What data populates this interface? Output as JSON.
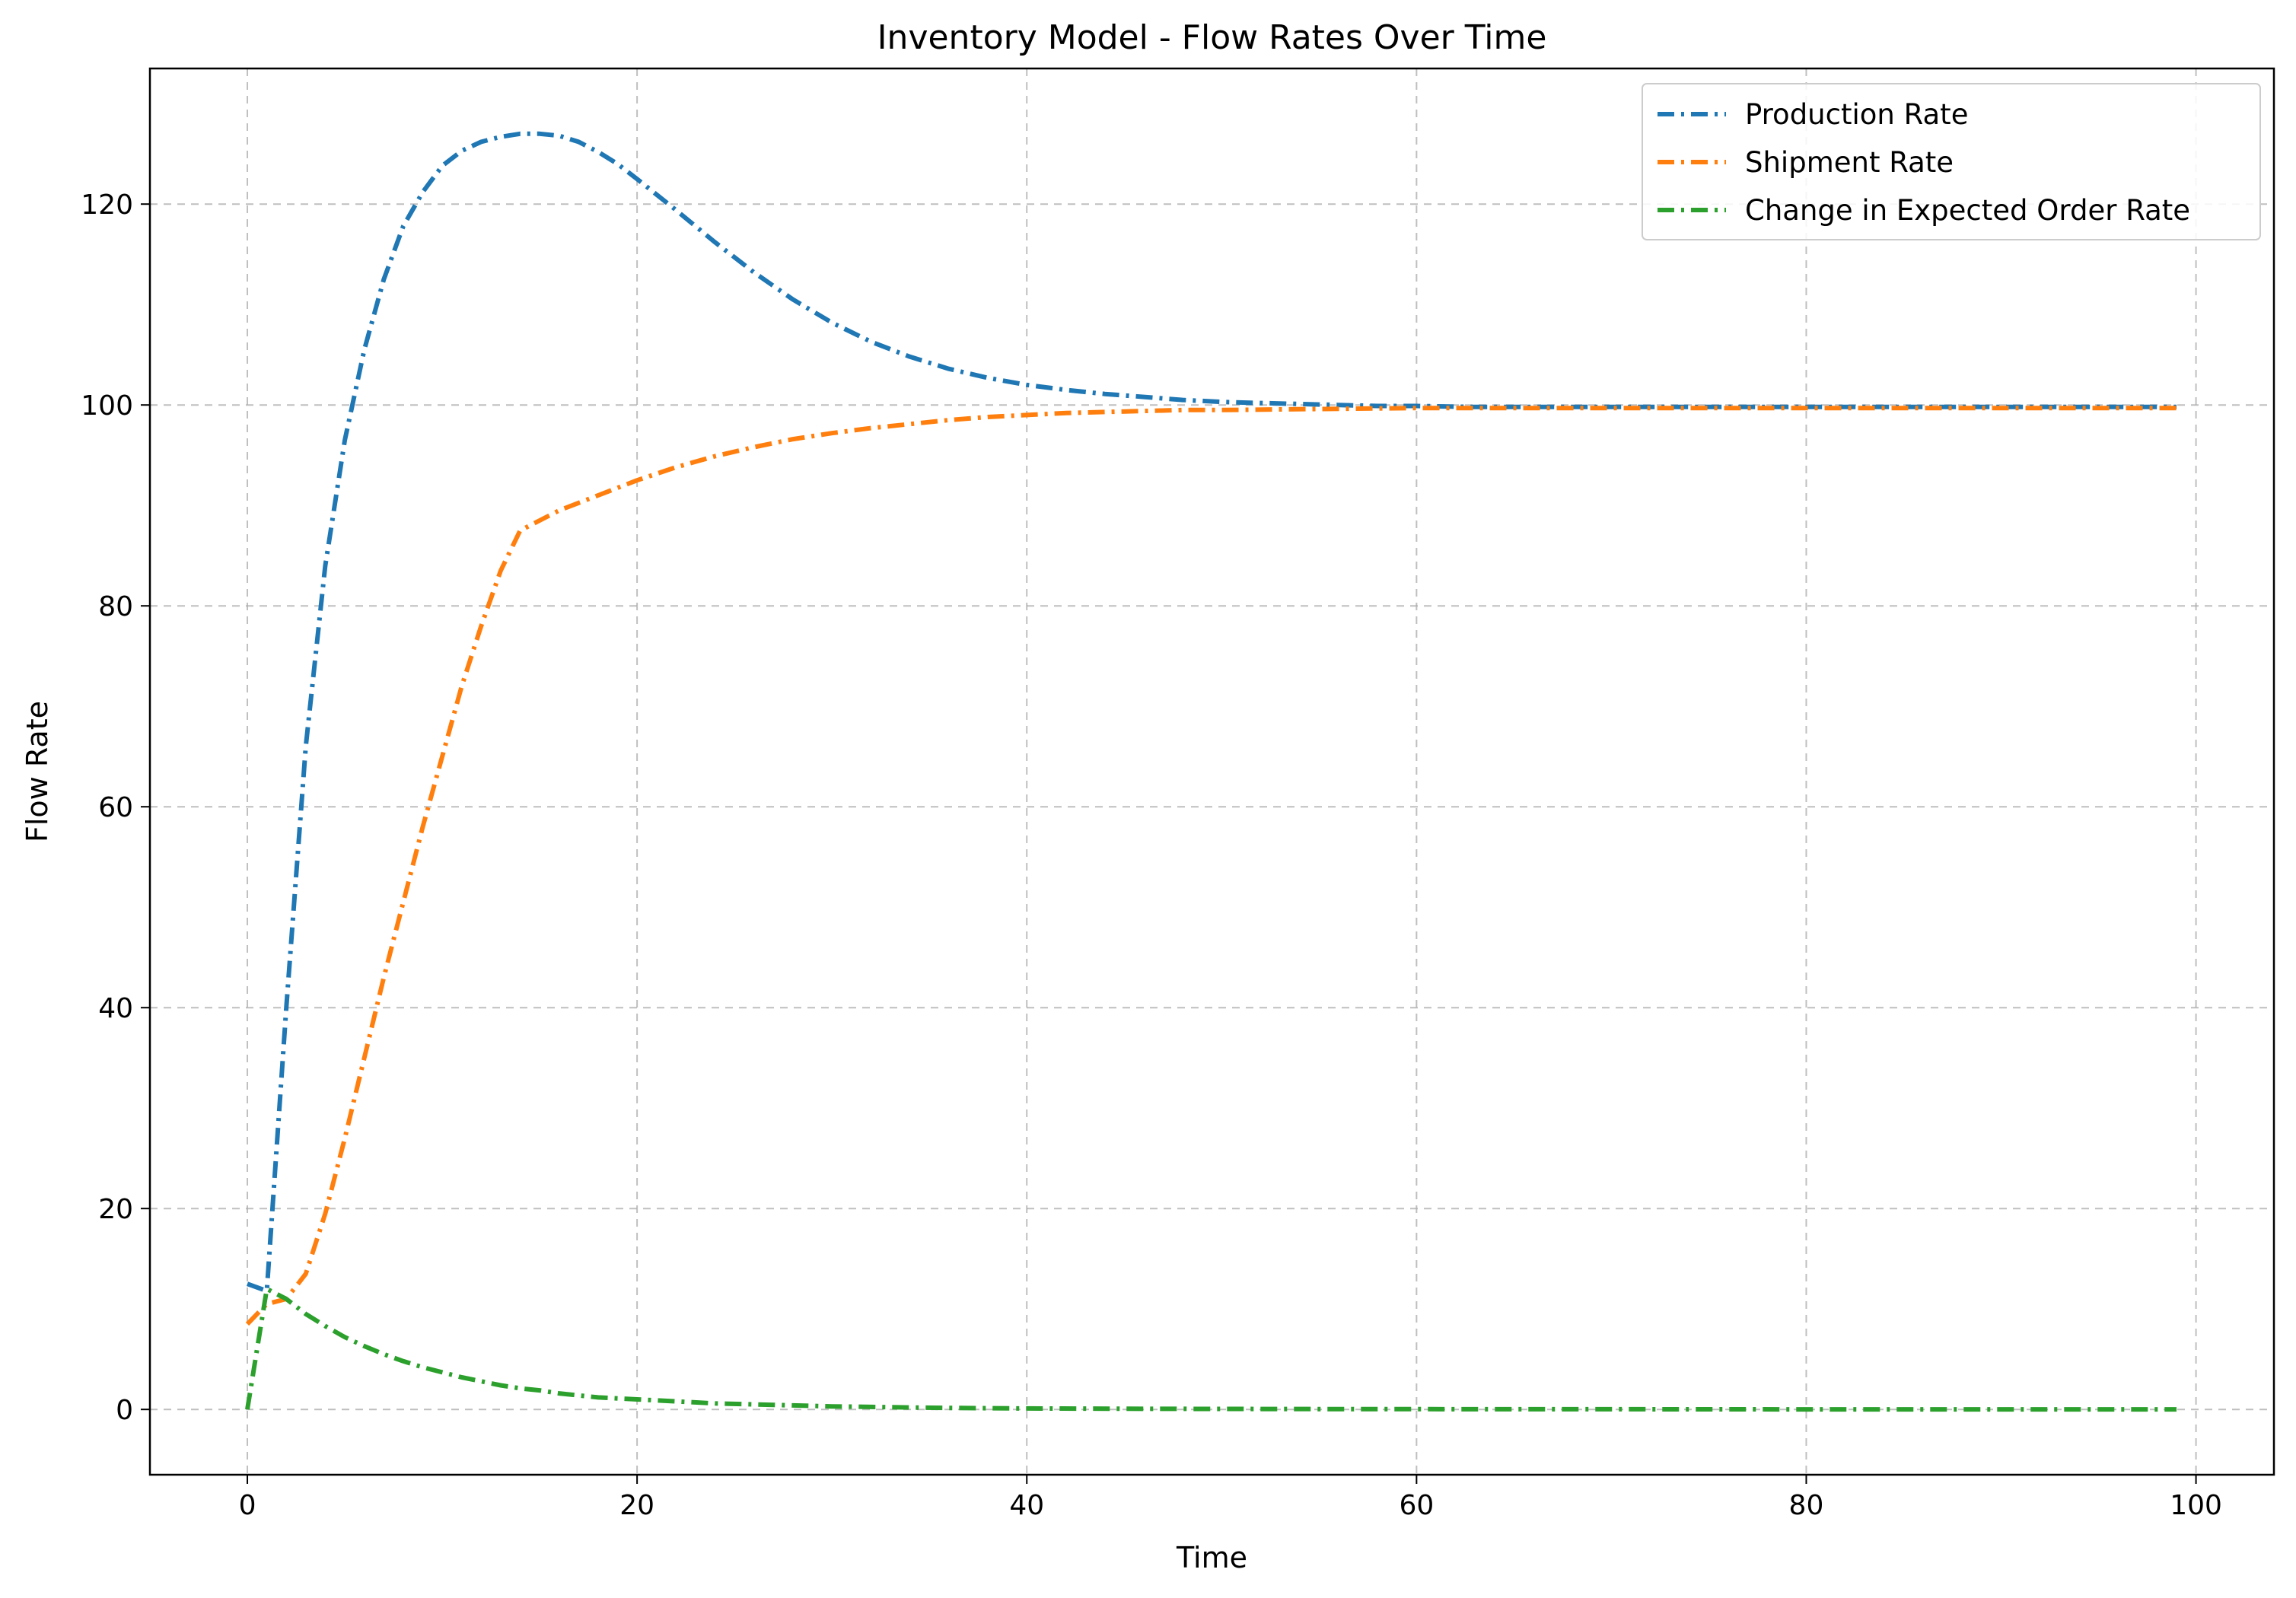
{
  "chart_data": {
    "type": "line",
    "title": "Inventory Model - Flow Rates Over Time",
    "xlabel": "Time",
    "ylabel": "Flow Rate",
    "xlim": [
      -5,
      104
    ],
    "ylim": [
      -6.5,
      133.5
    ],
    "xticks": [
      0,
      20,
      40,
      60,
      80,
      100
    ],
    "yticks": [
      0,
      20,
      40,
      60,
      80,
      100,
      120
    ],
    "grid": true,
    "line_style": "dash-dot",
    "legend_position": "top-right",
    "series": [
      {
        "name": "Production Rate",
        "color": "#1f77b4",
        "x": [
          0,
          1,
          2,
          3,
          4,
          5,
          6,
          7,
          8,
          9,
          10,
          11,
          12,
          13,
          14,
          15,
          16,
          17,
          18,
          19,
          20,
          22,
          24,
          26,
          28,
          30,
          32,
          34,
          36,
          38,
          40,
          42,
          44,
          46,
          48,
          50,
          52,
          54,
          56,
          58,
          60,
          63,
          66,
          70,
          75,
          80,
          85,
          90,
          95,
          99
        ],
        "y": [
          12.5,
          11.8,
          40.0,
          66.0,
          84.0,
          96.5,
          105.5,
          112.5,
          117.8,
          121.2,
          123.8,
          125.3,
          126.2,
          126.7,
          127.0,
          127.0,
          126.8,
          126.2,
          125.2,
          124.0,
          122.5,
          119.4,
          116.2,
          113.2,
          110.5,
          108.2,
          106.3,
          104.8,
          103.6,
          102.7,
          102.0,
          101.5,
          101.1,
          100.8,
          100.5,
          100.3,
          100.2,
          100.1,
          100.0,
          99.9,
          99.9,
          99.8,
          99.8,
          99.8,
          99.8,
          99.8,
          99.8,
          99.8,
          99.8,
          99.8
        ]
      },
      {
        "name": "Shipment Rate",
        "color": "#ff7f0e",
        "x": [
          0,
          1,
          2,
          3,
          4,
          5,
          6,
          7,
          8,
          9,
          10,
          11,
          12,
          13,
          14,
          15,
          16,
          18,
          20,
          22,
          24,
          26,
          28,
          30,
          32,
          34,
          36,
          38,
          40,
          42,
          44,
          46,
          48,
          50,
          55,
          60,
          65,
          70,
          75,
          80,
          85,
          90,
          95,
          99
        ],
        "y": [
          8.5,
          10.5,
          11.0,
          13.5,
          19.5,
          27.0,
          35.0,
          43.0,
          50.5,
          58.0,
          65.0,
          72.0,
          78.0,
          83.5,
          87.5,
          88.5,
          89.5,
          91.0,
          92.5,
          93.8,
          94.9,
          95.8,
          96.6,
          97.2,
          97.7,
          98.1,
          98.5,
          98.8,
          99.0,
          99.2,
          99.3,
          99.4,
          99.5,
          99.5,
          99.6,
          99.7,
          99.7,
          99.7,
          99.7,
          99.7,
          99.7,
          99.7,
          99.7,
          99.7
        ]
      },
      {
        "name": "Change in Expected Order Rate",
        "color": "#2ca02c",
        "x": [
          0,
          1,
          2,
          3,
          4,
          5,
          6,
          7,
          8,
          9,
          10,
          11,
          12,
          13,
          14,
          15,
          16,
          18,
          20,
          22,
          24,
          26,
          28,
          30,
          32,
          34,
          36,
          38,
          40,
          45,
          50,
          55,
          60,
          70,
          80,
          90,
          99
        ],
        "y": [
          0.0,
          12.0,
          11.0,
          9.5,
          8.3,
          7.2,
          6.3,
          5.5,
          4.8,
          4.2,
          3.7,
          3.2,
          2.8,
          2.4,
          2.1,
          1.9,
          1.6,
          1.2,
          1.0,
          0.8,
          0.6,
          0.5,
          0.4,
          0.3,
          0.25,
          0.2,
          0.15,
          0.12,
          0.1,
          0.07,
          0.05,
          0.04,
          0.03,
          0.02,
          0.01,
          0.01,
          0.01
        ]
      }
    ]
  }
}
